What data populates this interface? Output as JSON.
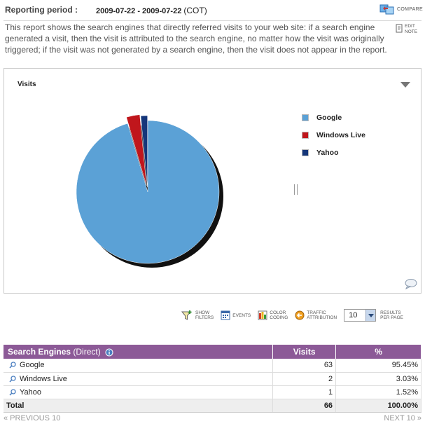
{
  "header": {
    "reporting_label": "Reporting period :",
    "period_value": "2009-07-22 - 2009-07-22",
    "timezone": "(COT)",
    "compare_label": "COMPARE",
    "edit_note_line1": "EDIT",
    "edit_note_line2": "NOTE"
  },
  "description": "This report shows the search engines that directly referred visits to your web site: if a search engine generated a visit, then the visit is attributed to the search engine, no matter how the visit was originally triggered; if the visit was not generated by a search engine, then the visit does not appear in the report.",
  "chart": {
    "title": "Visits",
    "legend": [
      {
        "label": "Google",
        "color": "#5ba1d6"
      },
      {
        "label": "Windows Live",
        "color": "#c0161c"
      },
      {
        "label": "Yahoo",
        "color": "#14367a"
      }
    ]
  },
  "chart_data": {
    "type": "pie",
    "title": "Visits",
    "categories": [
      "Google",
      "Windows Live",
      "Yahoo"
    ],
    "values": [
      63,
      2,
      1
    ],
    "colors": [
      "#5ba1d6",
      "#c0161c",
      "#14367a"
    ],
    "legend_position": "right"
  },
  "toolbar": {
    "show_filters_1": "SHOW",
    "show_filters_2": "FILTERS",
    "events": "EVENTS",
    "color_coding_1": "COLOR",
    "color_coding_2": "CODING",
    "traffic_attr_1": "TRAFFIC",
    "traffic_attr_2": "ATTRIBUTION",
    "rpp_value": "10",
    "rpp_label_1": "RESULTS",
    "rpp_label_2": "PER PAGE"
  },
  "table": {
    "col_name": "Search Engines",
    "col_name_sub": "(Direct)",
    "col_visits": "Visits",
    "col_pct": "%",
    "rows": [
      {
        "name": "Google",
        "visits": "63",
        "pct": "95.45%"
      },
      {
        "name": "Windows Live",
        "visits": "2",
        "pct": "3.03%"
      },
      {
        "name": "Yahoo",
        "visits": "1",
        "pct": "1.52%"
      }
    ],
    "total_label": "Total",
    "total_visits": "66",
    "total_pct": "100.00%"
  },
  "pager": {
    "prev": "« PREVIOUS 10",
    "next": "NEXT 10 »"
  }
}
